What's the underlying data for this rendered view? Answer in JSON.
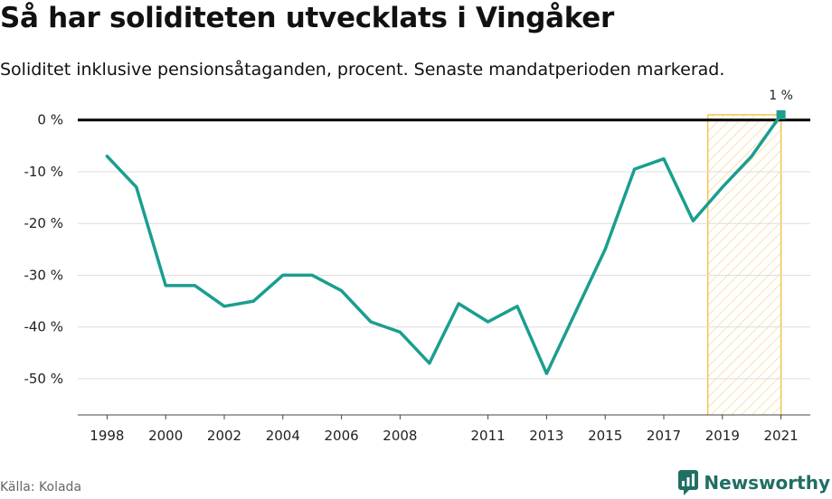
{
  "title": "Så har soliditeten utvecklats i Vingåker",
  "subtitle": "Soliditet inklusive pensionsåtaganden, procent. Senaste mandatperioden markerad.",
  "source": "Källa: Kolada",
  "brand": "Newsworthy",
  "colors": {
    "line": "#1a9e8f",
    "highlight": "#f5c14e",
    "grid": "#dddddd",
    "zero": "#000000",
    "logo": "#1f6f63"
  },
  "chart_data": {
    "type": "line",
    "title": "Så har soliditeten utvecklats i Vingåker",
    "ylabel": "",
    "xlabel": "",
    "ylim": [
      -57,
      1
    ],
    "xlim": [
      1997,
      2022
    ],
    "y_ticks": [
      0,
      -10,
      -20,
      -30,
      -40,
      -50
    ],
    "y_tick_labels": [
      "0 %",
      "-10 %",
      "-20 %",
      "-30 %",
      "-40 %",
      "-50 %"
    ],
    "x_ticks": [
      1998,
      2000,
      2002,
      2004,
      2006,
      2008,
      2011,
      2013,
      2015,
      2017,
      2019,
      2021
    ],
    "x_tick_labels": [
      "1998",
      "2000",
      "2002",
      "2004",
      "2006",
      "2008",
      "2011",
      "2013",
      "2015",
      "2017",
      "2019",
      "2021"
    ],
    "highlight_period": [
      2018.5,
      2021
    ],
    "series": [
      {
        "x": [
          1998,
          1999,
          2000,
          2001,
          2002,
          2003,
          2004,
          2005,
          2006,
          2007,
          2008,
          2009,
          2010,
          2011,
          2012,
          2013,
          2014,
          2015,
          2016,
          2017,
          2018,
          2019,
          2020,
          2021
        ],
        "values": [
          -7,
          -13,
          -32,
          -32,
          -36,
          -35,
          -30,
          -30,
          -33,
          -39,
          -41,
          -47,
          -35.5,
          -39,
          -36,
          -49,
          -37,
          -25,
          -9.5,
          -7.5,
          -19.5,
          -13,
          -7,
          1
        ]
      }
    ],
    "annotation": {
      "x": 2021,
      "y": 1,
      "text": "1 %"
    }
  }
}
